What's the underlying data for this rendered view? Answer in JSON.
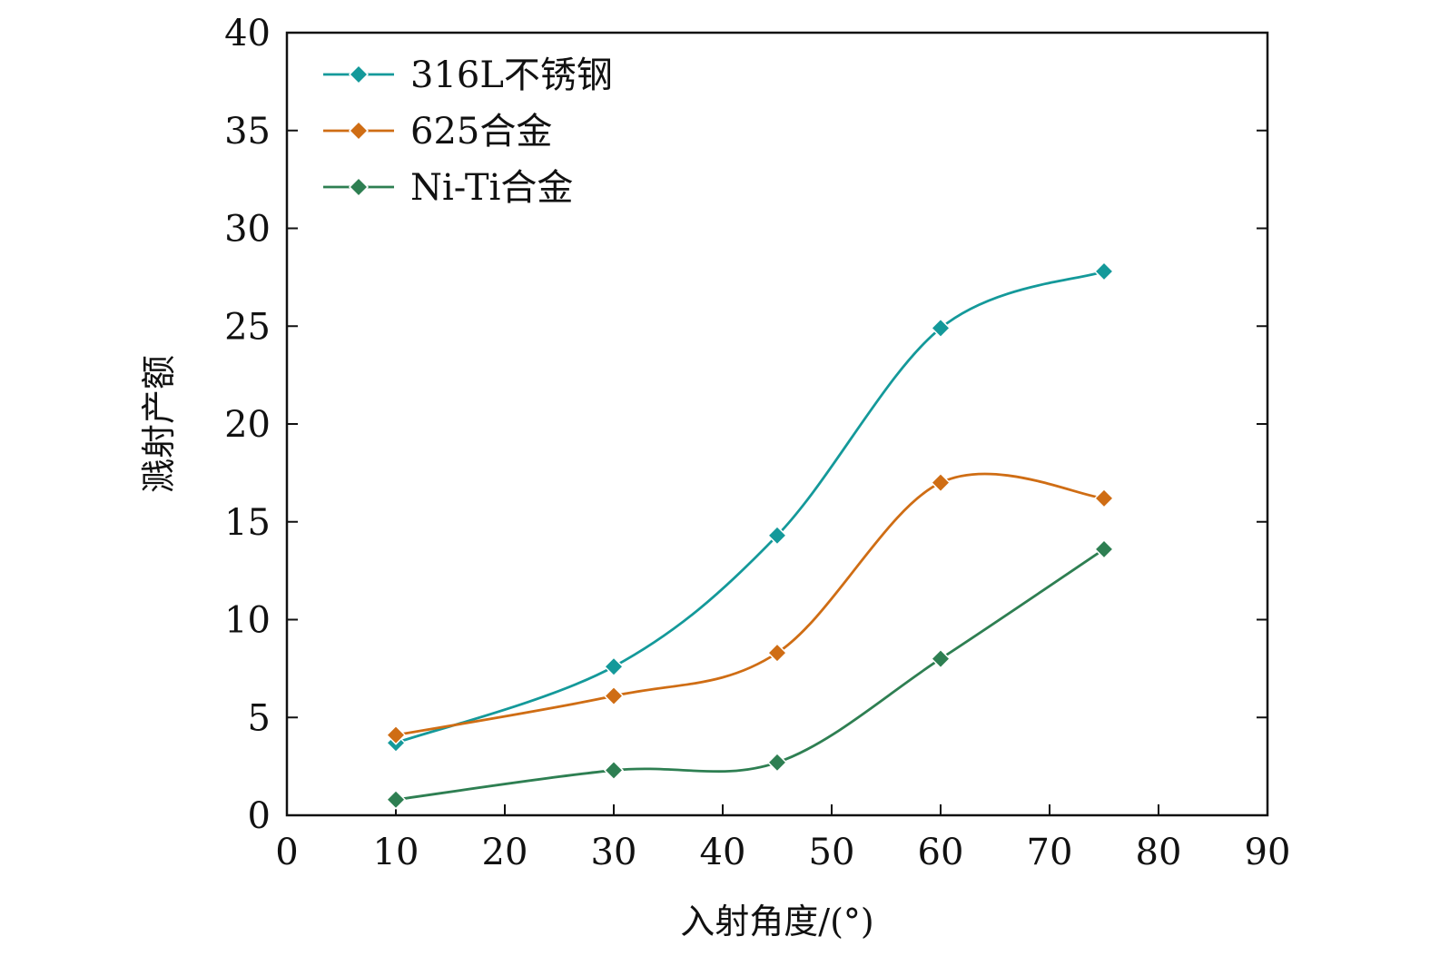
{
  "chart_data": {
    "type": "line",
    "xlabel": "入射角度/(°)",
    "ylabel": "溅射产额",
    "xlim": [
      0,
      90
    ],
    "ylim": [
      0,
      40
    ],
    "xticks": [
      0,
      10,
      20,
      30,
      40,
      50,
      60,
      70,
      80,
      90
    ],
    "yticks": [
      0,
      5,
      10,
      15,
      20,
      25,
      30,
      35,
      40
    ],
    "x": [
      10,
      30,
      45,
      60,
      75
    ],
    "legend_position": "top-left",
    "grid": false,
    "series": [
      {
        "name": "316L不锈钢",
        "color": "#14999a",
        "values": [
          3.7,
          7.6,
          14.3,
          24.9,
          27.8
        ]
      },
      {
        "name": "625合金",
        "color": "#cf6d14",
        "values": [
          4.1,
          6.1,
          8.3,
          17.0,
          16.2
        ]
      },
      {
        "name": "Ni-Ti合金",
        "color": "#2e7f52",
        "values": [
          0.8,
          2.3,
          2.7,
          8.0,
          13.6
        ]
      }
    ]
  }
}
